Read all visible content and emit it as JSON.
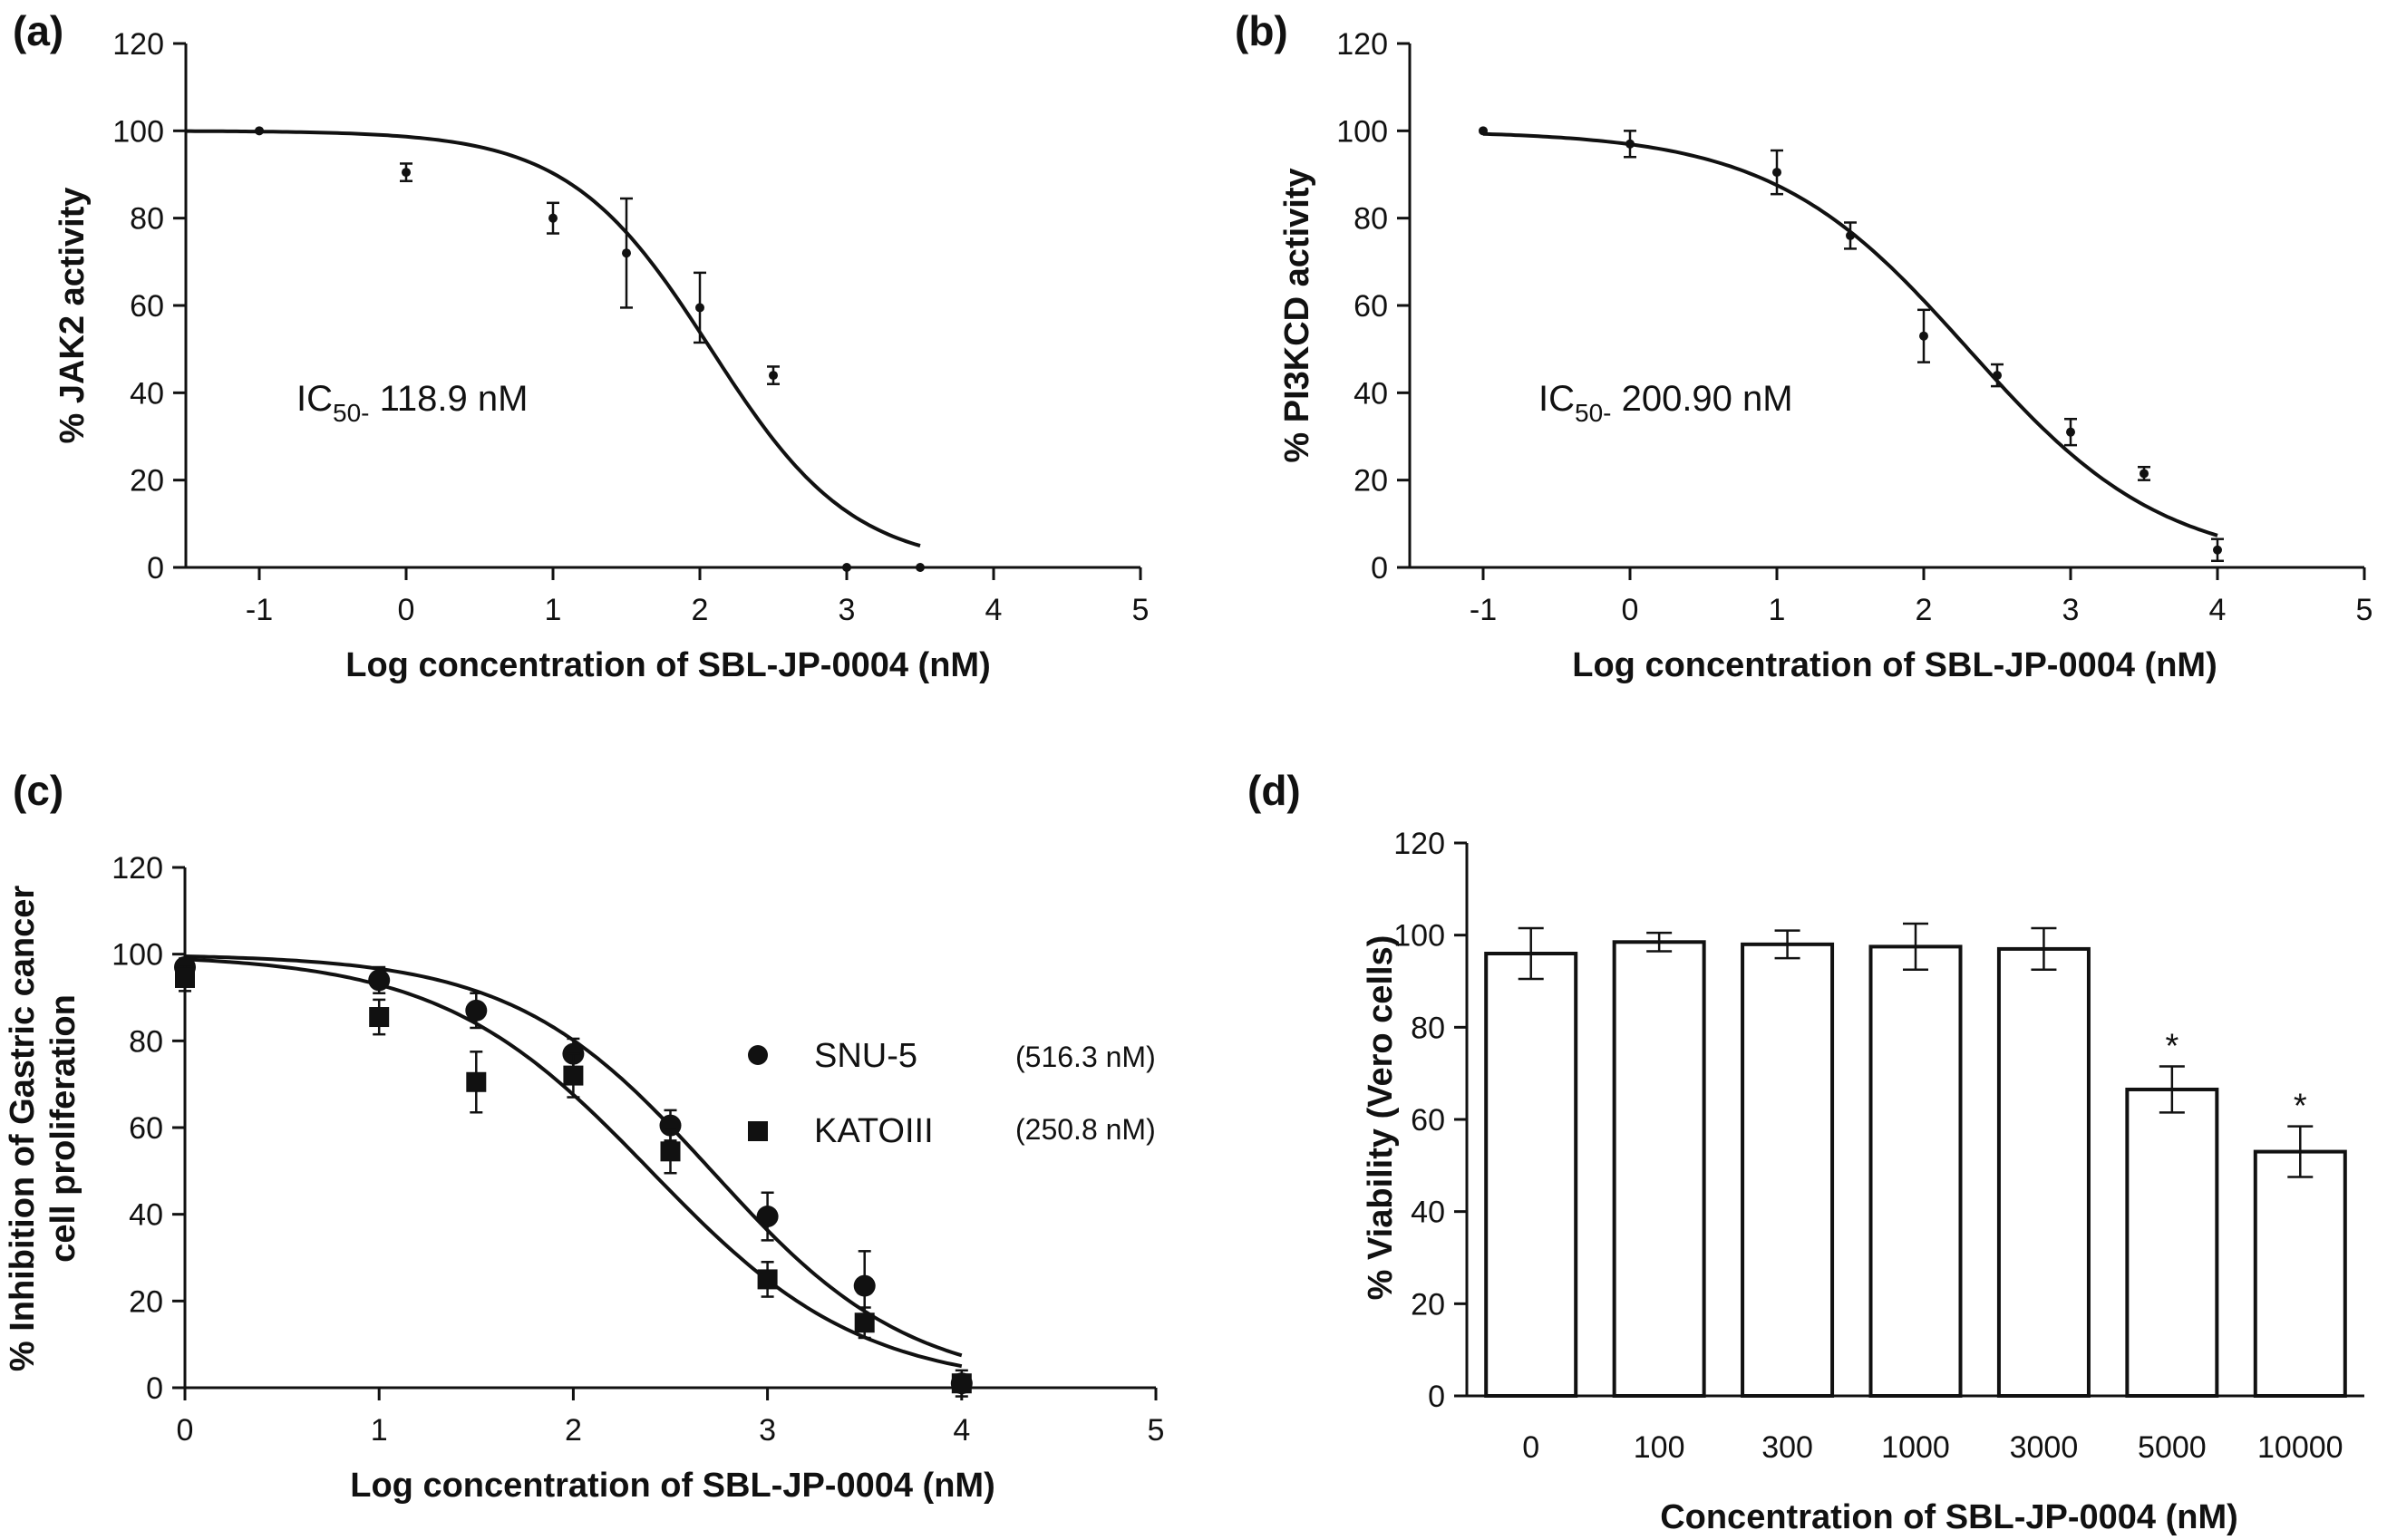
{
  "chart_data": [
    {
      "panel": "(a)",
      "type": "scatter",
      "xlabel": "Log concentration of SBL-JP-0004 (nM)",
      "ylabel": "% JAK2 activity",
      "xlim": [
        -1.5,
        5
      ],
      "ylim": [
        0,
        120
      ],
      "x_ticks": [
        -1,
        0,
        1,
        2,
        3,
        4,
        5
      ],
      "y_ticks": [
        0,
        20,
        40,
        60,
        80,
        100,
        120
      ],
      "annotation": {
        "prefix": "IC",
        "sub": "50-",
        "value": " 118.9 nM"
      },
      "series": [
        {
          "name": "JAK2",
          "marker": "circle-small",
          "x": [
            -1,
            0,
            1,
            1.5,
            2,
            2.5,
            3,
            3.5
          ],
          "y": [
            100,
            90.5,
            80,
            72,
            59.5,
            44,
            0,
            0
          ],
          "err": [
            0,
            2,
            3.5,
            12.5,
            8,
            2,
            0,
            0
          ],
          "fit": {
            "top": 100,
            "bottom": 0,
            "log_ic50": 2.075,
            "hill": 0.9,
            "x_range": [
              -1.5,
              3.5
            ]
          }
        }
      ]
    },
    {
      "panel": "(b)",
      "type": "scatter",
      "xlabel": "Log concentration of SBL-JP-0004 (nM)",
      "ylabel": "% PI3KCD activity",
      "xlim": [
        -1.5,
        5
      ],
      "ylim": [
        0,
        120
      ],
      "x_ticks": [
        -1,
        0,
        1,
        2,
        3,
        4,
        5
      ],
      "y_ticks": [
        0,
        20,
        40,
        60,
        80,
        100,
        120
      ],
      "annotation": {
        "prefix": "IC",
        "sub": "50-",
        "value": " 200.90 nM"
      },
      "series": [
        {
          "name": "PI3KCD",
          "marker": "circle-small",
          "x": [
            -1,
            0,
            1,
            1.5,
            2,
            2.5,
            3,
            3.5,
            4
          ],
          "y": [
            100,
            97,
            90.5,
            76,
            53,
            44,
            31,
            21.5,
            4
          ],
          "err": [
            0,
            3,
            5,
            3,
            6,
            2.5,
            3,
            1.5,
            2.5
          ],
          "fit": {
            "top": 100,
            "bottom": 0,
            "log_ic50": 2.303,
            "hill": 0.65,
            "x_range": [
              -1,
              4
            ]
          }
        }
      ]
    },
    {
      "panel": "(c)",
      "type": "scatter",
      "xlabel": "Log concentration of SBL-JP-0004 (nM)",
      "ylabel_line1": "% Inhibition of Gastric cancer",
      "ylabel_line2": "cell proliferation",
      "xlim": [
        0,
        5
      ],
      "ylim": [
        0,
        120
      ],
      "x_ticks": [
        0,
        1,
        2,
        3,
        4,
        5
      ],
      "y_ticks": [
        0,
        20,
        40,
        60,
        80,
        100,
        120
      ],
      "series": [
        {
          "name": "SNU-5",
          "ic50": "(516.3 nM)",
          "marker": "circle",
          "x": [
            0,
            1,
            1.5,
            2,
            2.5,
            3,
            3.5,
            4
          ],
          "y": [
            97,
            94,
            87,
            77,
            60.5,
            39.5,
            23.5,
            1
          ],
          "err": [
            2,
            3,
            4,
            3.5,
            3.5,
            5.5,
            8,
            3
          ],
          "fit": {
            "top": 100,
            "bottom": 0,
            "log_ic50": 2.713,
            "hill": 0.85,
            "x_range": [
              0,
              4
            ]
          }
        },
        {
          "name": "KATOIII",
          "ic50": "(250.8 nM)",
          "marker": "square",
          "x": [
            0,
            1,
            1.5,
            2,
            2.5,
            3,
            3.5,
            4
          ],
          "y": [
            94.5,
            85.5,
            70.5,
            72,
            54.5,
            25,
            15,
            1
          ],
          "err": [
            3,
            4,
            7,
            5,
            5,
            4,
            3.5,
            2
          ],
          "fit": {
            "top": 100,
            "bottom": 0,
            "log_ic50": 2.399,
            "hill": 0.8,
            "x_range": [
              0,
              4
            ]
          }
        }
      ]
    },
    {
      "panel": "(d)",
      "type": "bar",
      "xlabel": "Concentration of SBL-JP-0004  (nM)",
      "ylabel": "% Viability (Vero cells)",
      "ylim": [
        0,
        120
      ],
      "y_ticks": [
        0,
        20,
        40,
        60,
        80,
        100,
        120
      ],
      "categories": [
        "0",
        "100",
        "300",
        "1000",
        "3000",
        "5000",
        "10000"
      ],
      "values": [
        96,
        98.5,
        98,
        97.5,
        97,
        66.5,
        53
      ],
      "err": [
        5.5,
        2,
        3,
        5,
        4.5,
        5,
        5.5
      ],
      "significance": [
        "",
        "",
        "",
        "",
        "",
        "*",
        "*"
      ]
    }
  ]
}
